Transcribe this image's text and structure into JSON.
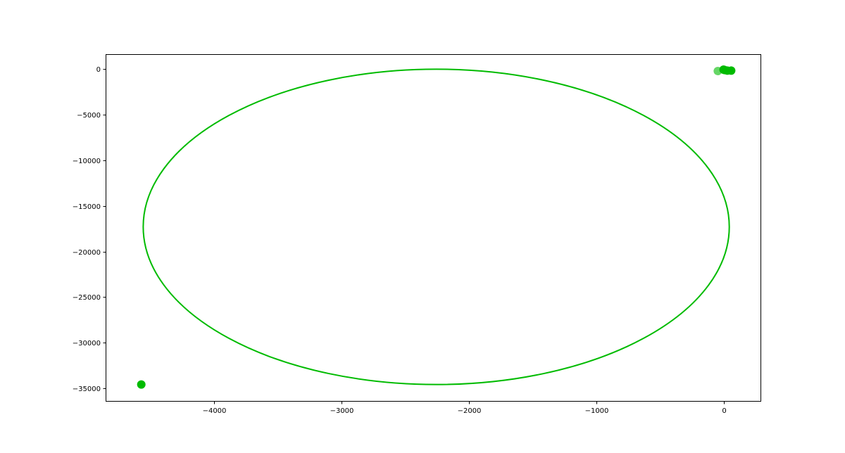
{
  "chart_data": {
    "type": "scatter",
    "title": "",
    "xlabel": "",
    "ylabel": "",
    "xlim": [
      -4850,
      290
    ],
    "ylim": [
      -36400,
      1650
    ],
    "grid": false,
    "x_ticks": [
      {
        "value": -4000,
        "label": "−4000"
      },
      {
        "value": -3000,
        "label": "−3000"
      },
      {
        "value": -2000,
        "label": "−2000"
      },
      {
        "value": -1000,
        "label": "−1000"
      },
      {
        "value": 0,
        "label": "0"
      }
    ],
    "y_ticks": [
      {
        "value": 0,
        "label": "0"
      },
      {
        "value": -5000,
        "label": "−5000"
      },
      {
        "value": -10000,
        "label": "−10000"
      },
      {
        "value": -15000,
        "label": "−15000"
      },
      {
        "value": -20000,
        "label": "−20000"
      },
      {
        "value": -25000,
        "label": "−25000"
      },
      {
        "value": -30000,
        "label": "−30000"
      },
      {
        "value": -35000,
        "label": "−35000"
      }
    ],
    "series": [
      {
        "kind": "ellipse",
        "center": [
          -2255,
          -17300
        ],
        "semi_axis_x": 2300,
        "semi_axis_y": 17300,
        "color": "#00bb00"
      },
      {
        "kind": "points",
        "color": "#00bb00",
        "points": [
          {
            "x": -4570,
            "y": -34600,
            "alpha": 1.0
          },
          {
            "x": -45,
            "y": -200,
            "alpha": 0.6
          },
          {
            "x": 0,
            "y": -50,
            "alpha": 1.0
          },
          {
            "x": 10,
            "y": -100,
            "alpha": 1.0
          },
          {
            "x": 30,
            "y": -150,
            "alpha": 1.0
          },
          {
            "x": 60,
            "y": -150,
            "alpha": 1.0
          }
        ]
      }
    ]
  }
}
